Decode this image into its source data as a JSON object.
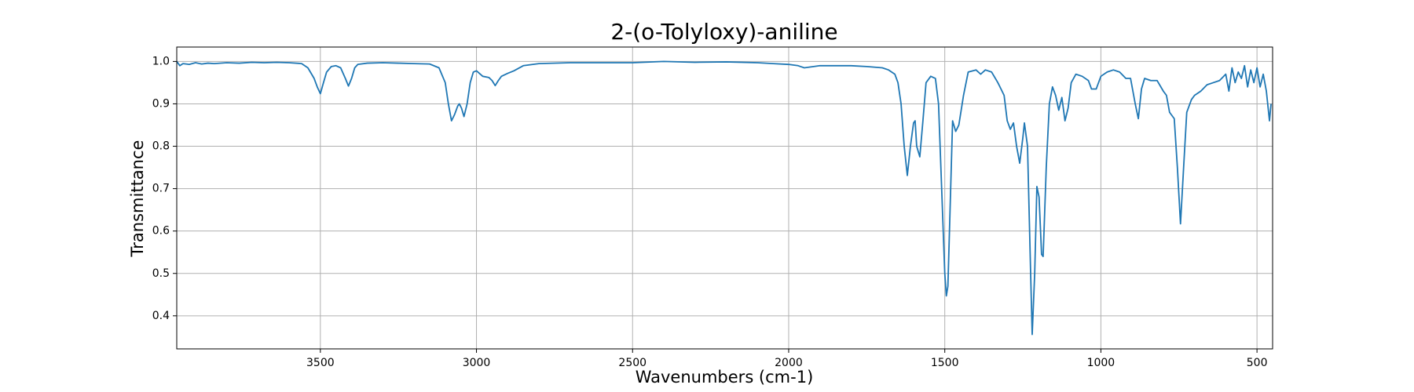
{
  "chart_data": {
    "type": "line",
    "title": "2-(o-Tolyloxy)-aniline",
    "xlabel": "Wavenumbers (cm-1)",
    "ylabel": "Transmittance",
    "color": "#1f77b4",
    "grid": true,
    "xlim": [
      3960,
      450
    ],
    "ylim": [
      0.322,
      1.034
    ],
    "xticks": [
      3500,
      3000,
      2500,
      2000,
      1500,
      1000,
      500
    ],
    "yticks": [
      0.4,
      0.5,
      0.6,
      0.7,
      0.8,
      0.9,
      {
        "value": 1,
        "label": "1.0"
      }
    ],
    "x": [
      3960,
      3950,
      3940,
      3920,
      3900,
      3880,
      3860,
      3840,
      3800,
      3760,
      3720,
      3680,
      3640,
      3600,
      3560,
      3540,
      3520,
      3510,
      3500,
      3490,
      3480,
      3465,
      3450,
      3435,
      3420,
      3410,
      3400,
      3390,
      3380,
      3350,
      3300,
      3250,
      3200,
      3150,
      3120,
      3100,
      3090,
      3080,
      3070,
      3060,
      3055,
      3048,
      3040,
      3030,
      3020,
      3010,
      3000,
      2980,
      2960,
      2950,
      2940,
      2930,
      2920,
      2900,
      2880,
      2850,
      2800,
      2700,
      2600,
      2500,
      2400,
      2300,
      2200,
      2100,
      2050,
      2000,
      1970,
      1950,
      1920,
      1900,
      1850,
      1800,
      1750,
      1700,
      1680,
      1660,
      1650,
      1640,
      1630,
      1620,
      1610,
      1600,
      1595,
      1590,
      1580,
      1570,
      1560,
      1545,
      1530,
      1520,
      1510,
      1500,
      1495,
      1490,
      1485,
      1475,
      1465,
      1455,
      1440,
      1425,
      1400,
      1385,
      1370,
      1350,
      1330,
      1310,
      1300,
      1290,
      1280,
      1270,
      1260,
      1250,
      1245,
      1235,
      1225,
      1220,
      1212,
      1205,
      1198,
      1190,
      1185,
      1175,
      1165,
      1155,
      1145,
      1135,
      1125,
      1115,
      1105,
      1095,
      1080,
      1060,
      1040,
      1030,
      1015,
      1000,
      980,
      960,
      940,
      920,
      905,
      890,
      880,
      870,
      860,
      840,
      820,
      800,
      790,
      780,
      765,
      755,
      745,
      735,
      725,
      710,
      700,
      680,
      660,
      640,
      620,
      600,
      590,
      580,
      570,
      560,
      550,
      540,
      530,
      520,
      510,
      500,
      490,
      480,
      470,
      460,
      455
    ],
    "values": [
      1.0,
      0.99,
      0.995,
      0.993,
      0.997,
      0.994,
      0.996,
      0.995,
      0.997,
      0.996,
      0.998,
      0.997,
      0.998,
      0.997,
      0.995,
      0.985,
      0.96,
      0.94,
      0.924,
      0.95,
      0.975,
      0.988,
      0.99,
      0.985,
      0.96,
      0.942,
      0.96,
      0.985,
      0.993,
      0.996,
      0.997,
      0.996,
      0.995,
      0.994,
      0.985,
      0.95,
      0.9,
      0.86,
      0.875,
      0.895,
      0.9,
      0.89,
      0.87,
      0.9,
      0.95,
      0.975,
      0.978,
      0.965,
      0.962,
      0.955,
      0.943,
      0.955,
      0.965,
      0.972,
      0.978,
      0.99,
      0.995,
      0.997,
      0.997,
      0.997,
      1.0,
      0.998,
      0.999,
      0.997,
      0.995,
      0.993,
      0.99,
      0.985,
      0.988,
      0.99,
      0.99,
      0.99,
      0.988,
      0.985,
      0.98,
      0.97,
      0.95,
      0.9,
      0.8,
      0.731,
      0.8,
      0.855,
      0.86,
      0.8,
      0.775,
      0.86,
      0.95,
      0.965,
      0.96,
      0.9,
      0.7,
      0.5,
      0.447,
      0.47,
      0.6,
      0.86,
      0.835,
      0.85,
      0.92,
      0.975,
      0.98,
      0.97,
      0.98,
      0.975,
      0.95,
      0.92,
      0.86,
      0.84,
      0.855,
      0.8,
      0.76,
      0.82,
      0.855,
      0.8,
      0.5,
      0.356,
      0.5,
      0.705,
      0.68,
      0.545,
      0.54,
      0.75,
      0.9,
      0.94,
      0.92,
      0.885,
      0.915,
      0.86,
      0.89,
      0.95,
      0.97,
      0.965,
      0.955,
      0.935,
      0.935,
      0.965,
      0.975,
      0.98,
      0.975,
      0.96,
      0.96,
      0.9,
      0.865,
      0.935,
      0.96,
      0.955,
      0.955,
      0.93,
      0.92,
      0.88,
      0.865,
      0.75,
      0.617,
      0.75,
      0.88,
      0.91,
      0.92,
      0.93,
      0.945,
      0.95,
      0.955,
      0.97,
      0.93,
      0.985,
      0.95,
      0.975,
      0.96,
      0.99,
      0.94,
      0.98,
      0.95,
      0.985,
      0.94,
      0.97,
      0.93,
      0.86,
      0.9
    ]
  }
}
